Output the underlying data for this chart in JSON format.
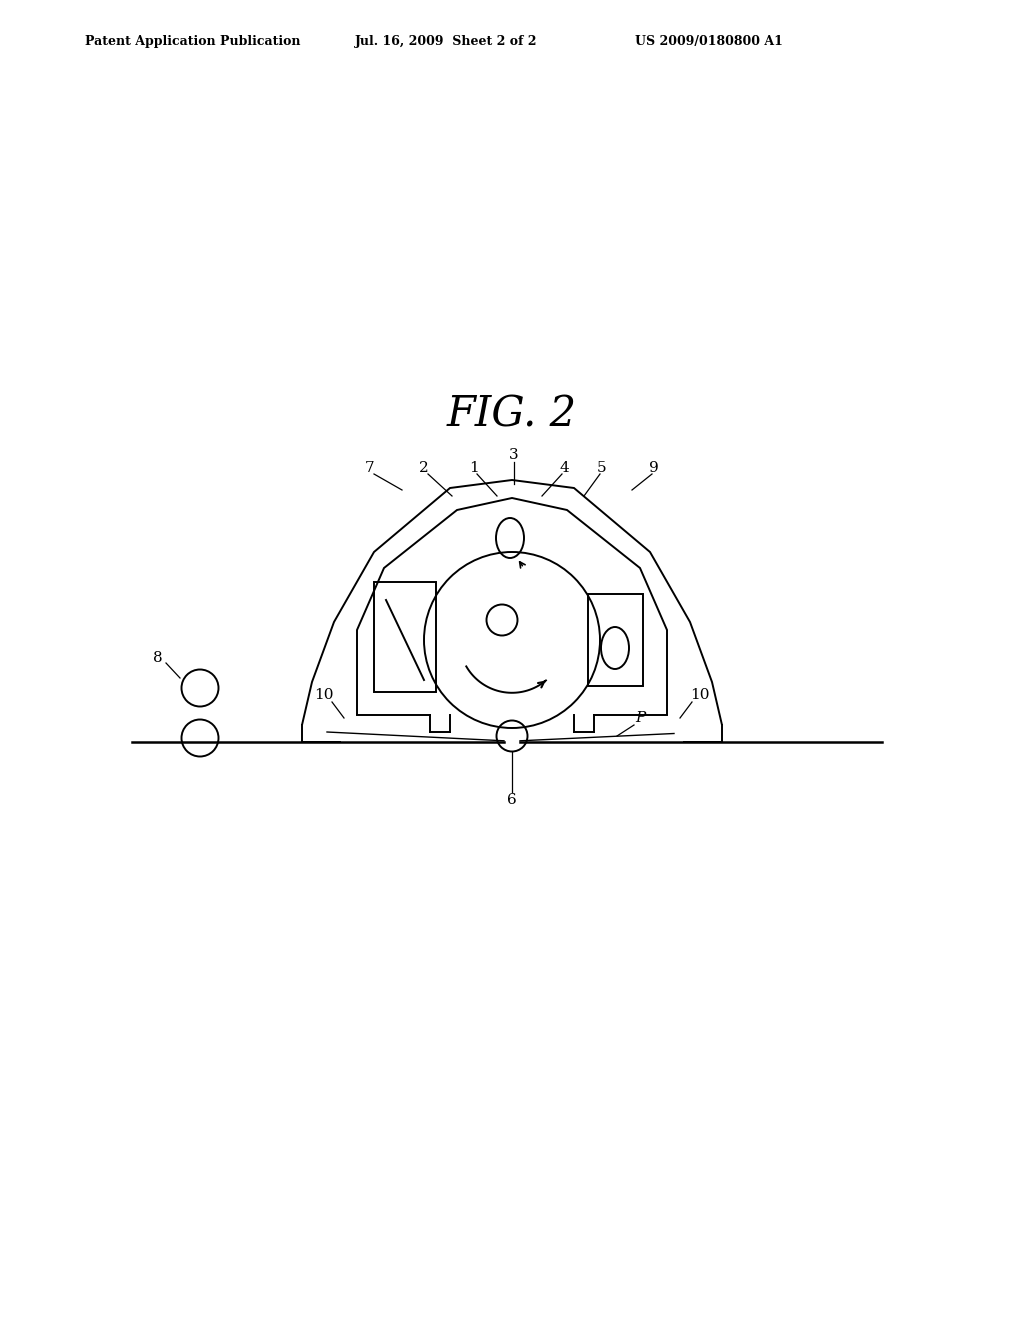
{
  "background_color": "#ffffff",
  "header_left": "Patent Application Publication",
  "header_mid": "Jul. 16, 2009  Sheet 2 of 2",
  "header_right": "US 2009/0180800 A1",
  "figure_title": "FIG. 2",
  "line_color": "#000000",
  "lw_main": 1.4,
  "lw_thin": 1.0,
  "label_fontsize": 11,
  "title_fontsize": 30,
  "header_fontsize": 9
}
